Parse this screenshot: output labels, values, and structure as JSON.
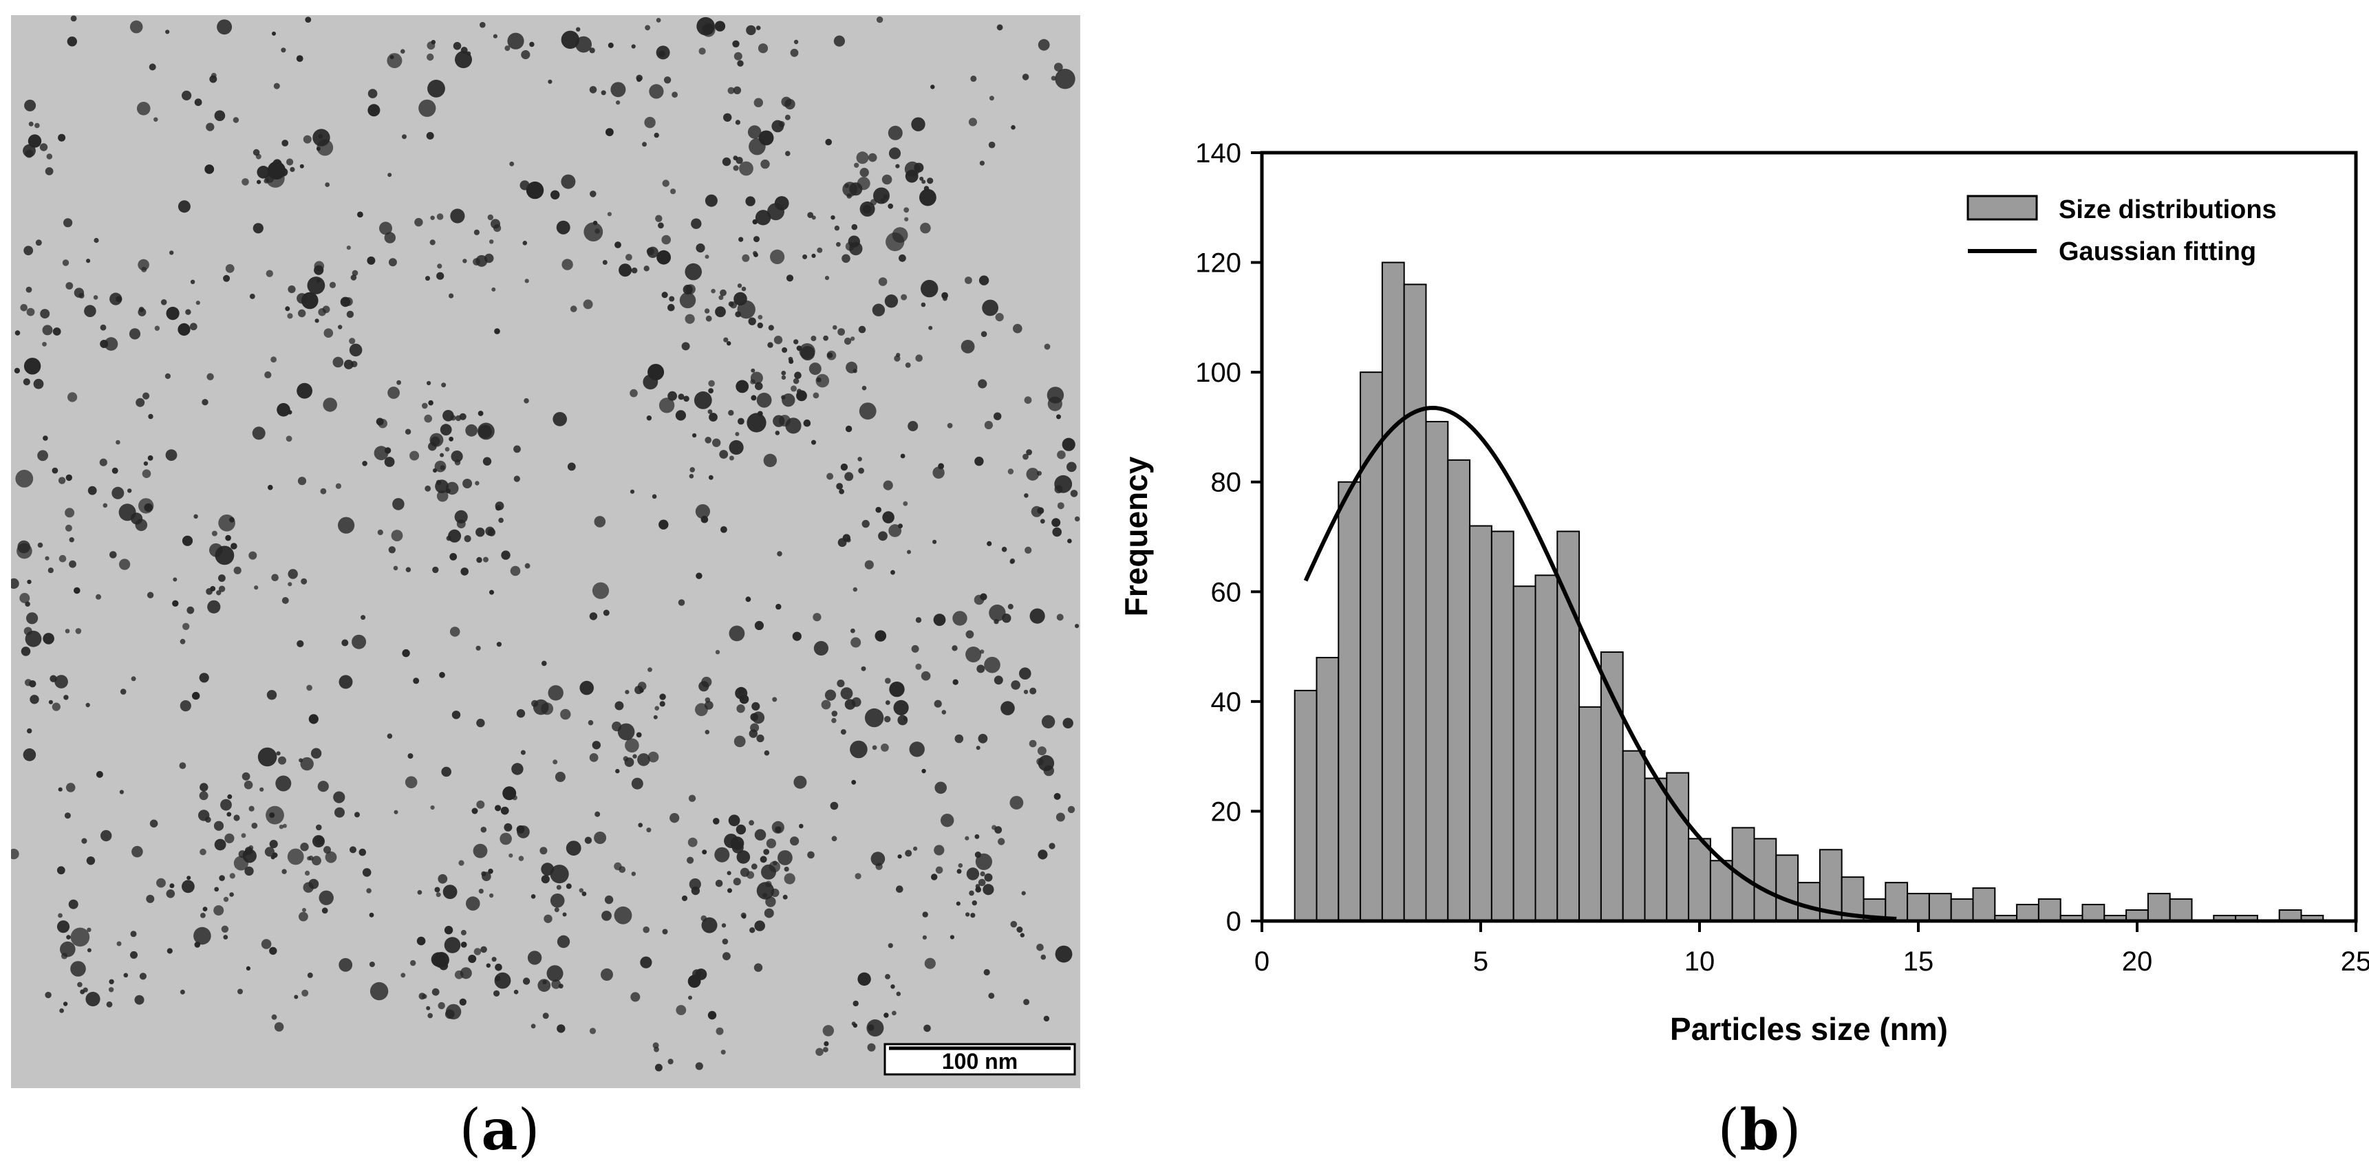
{
  "panel_a": {
    "label_open": "(",
    "label_letter": "a",
    "label_close": ")",
    "scale_bar_text": "100 nm",
    "image_description": "TEM micrograph of dispersed dark nanoparticles on grey background",
    "colors": {
      "background": "#c4c4c4",
      "particle": "#262626"
    }
  },
  "panel_b": {
    "label_open": "(",
    "label_letter": "b",
    "label_close": ")"
  },
  "chart_data": {
    "type": "bar",
    "xlabel": "Particles size (nm)",
    "ylabel": "Frequency",
    "xlim": [
      0,
      25
    ],
    "ylim": [
      0,
      140
    ],
    "xticks": [
      0,
      5,
      10,
      15,
      20,
      25
    ],
    "yticks": [
      0,
      20,
      40,
      60,
      80,
      100,
      120,
      140
    ],
    "legend_position": "top-right",
    "grid": false,
    "bin_width": 0.5,
    "bin_starts": [
      0.75,
      1.25,
      1.75,
      2.25,
      2.75,
      3.25,
      3.75,
      4.25,
      4.75,
      5.25,
      5.75,
      6.25,
      6.75,
      7.25,
      7.75,
      8.25,
      8.75,
      9.25,
      9.75,
      10.25,
      10.75,
      11.25,
      11.75,
      12.25,
      12.75,
      13.25,
      13.75,
      14.25,
      14.75,
      15.25,
      15.75,
      16.25,
      16.75,
      17.25,
      17.75,
      18.25,
      18.75,
      19.25,
      19.75,
      20.25,
      20.75,
      21.25,
      21.75,
      22.25,
      22.75,
      23.25,
      23.75
    ],
    "frequencies": [
      42,
      48,
      80,
      100,
      120,
      116,
      91,
      84,
      72,
      71,
      61,
      63,
      71,
      39,
      49,
      31,
      26,
      27,
      15,
      11,
      17,
      15,
      12,
      7,
      13,
      8,
      4,
      7,
      5,
      5,
      4,
      6,
      1,
      3,
      4,
      1,
      3,
      1,
      2,
      5,
      4,
      0,
      1,
      1,
      0,
      2,
      1
    ],
    "series": [
      {
        "name": "Size distributions",
        "kind": "bar",
        "color": "#9b9b9b"
      },
      {
        "name": "Gaussian fitting",
        "kind": "line",
        "color": "#000000",
        "amplitude": 93.5,
        "mean": 3.9,
        "sigma": 3.2,
        "x_range": [
          1.0,
          14.5
        ]
      }
    ]
  }
}
